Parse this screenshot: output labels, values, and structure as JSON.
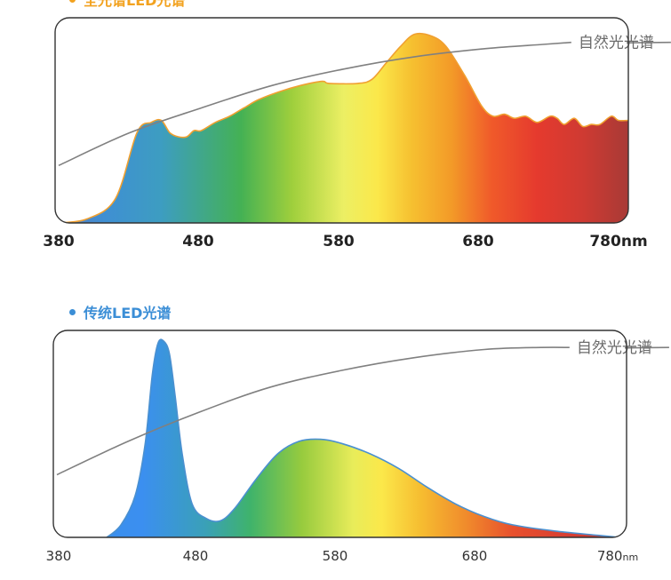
{
  "chart_data": [
    {
      "type": "area",
      "series_label": "全光谱LED光谱",
      "reference_label": "自然光光谱",
      "xlabel": "",
      "ylabel": "",
      "x_unit": "nm",
      "xlim": [
        380,
        780
      ],
      "ylim": [
        0,
        1
      ],
      "x_ticks": [
        380,
        480,
        580,
        680,
        780
      ],
      "series": [
        {
          "name": "全光谱LED光谱",
          "points": [
            [
              380,
              0.0
            ],
            [
              400,
              0.02
            ],
            [
              420,
              0.12
            ],
            [
              435,
              0.44
            ],
            [
              445,
              0.49
            ],
            [
              452,
              0.5
            ],
            [
              458,
              0.44
            ],
            [
              464,
              0.42
            ],
            [
              470,
              0.42
            ],
            [
              475,
              0.45
            ],
            [
              480,
              0.45
            ],
            [
              490,
              0.49
            ],
            [
              500,
              0.52
            ],
            [
              510,
              0.56
            ],
            [
              520,
              0.6
            ],
            [
              535,
              0.64
            ],
            [
              550,
              0.67
            ],
            [
              565,
              0.69
            ],
            [
              570,
              0.68
            ],
            [
              590,
              0.68
            ],
            [
              600,
              0.7
            ],
            [
              610,
              0.78
            ],
            [
              620,
              0.86
            ],
            [
              630,
              0.92
            ],
            [
              642,
              0.91
            ],
            [
              652,
              0.86
            ],
            [
              665,
              0.72
            ],
            [
              677,
              0.57
            ],
            [
              685,
              0.52
            ],
            [
              693,
              0.53
            ],
            [
              700,
              0.51
            ],
            [
              708,
              0.52
            ],
            [
              716,
              0.49
            ],
            [
              725,
              0.52
            ],
            [
              730,
              0.51
            ],
            [
              735,
              0.48
            ],
            [
              742,
              0.51
            ],
            [
              748,
              0.47
            ],
            [
              754,
              0.48
            ],
            [
              760,
              0.48
            ],
            [
              768,
              0.52
            ],
            [
              773,
              0.5
            ],
            [
              780,
              0.5
            ]
          ]
        },
        {
          "name": "自然光光谱",
          "points": [
            [
              380,
              0.28
            ],
            [
              430,
              0.44
            ],
            [
              480,
              0.56
            ],
            [
              530,
              0.67
            ],
            [
              580,
              0.75
            ],
            [
              630,
              0.81
            ],
            [
              680,
              0.85
            ],
            [
              720,
              0.87
            ],
            [
              740,
              0.88
            ]
          ]
        }
      ]
    },
    {
      "type": "area",
      "series_label": "传统LED光谱",
      "reference_label": "自然光光谱",
      "xlabel": "",
      "ylabel": "",
      "x_unit": "nm",
      "xlim": [
        380,
        780
      ],
      "ylim": [
        0,
        1
      ],
      "x_ticks": [
        380,
        480,
        580,
        680,
        780
      ],
      "series": [
        {
          "name": "传统LED光谱",
          "points": [
            [
              415,
              0.0
            ],
            [
              425,
              0.06
            ],
            [
              435,
              0.2
            ],
            [
              442,
              0.45
            ],
            [
              447,
              0.78
            ],
            [
              451,
              0.93
            ],
            [
              455,
              0.94
            ],
            [
              459,
              0.88
            ],
            [
              463,
              0.68
            ],
            [
              468,
              0.4
            ],
            [
              475,
              0.16
            ],
            [
              485,
              0.09
            ],
            [
              495,
              0.08
            ],
            [
              505,
              0.14
            ],
            [
              520,
              0.28
            ],
            [
              535,
              0.4
            ],
            [
              550,
              0.46
            ],
            [
              565,
              0.47
            ],
            [
              580,
              0.45
            ],
            [
              600,
              0.4
            ],
            [
              620,
              0.33
            ],
            [
              640,
              0.24
            ],
            [
              660,
              0.16
            ],
            [
              680,
              0.1
            ],
            [
              700,
              0.06
            ],
            [
              730,
              0.03
            ],
            [
              760,
              0.01
            ],
            [
              775,
              0.0
            ]
          ]
        },
        {
          "name": "自然光光谱",
          "points": [
            [
              380,
              0.3
            ],
            [
              430,
              0.46
            ],
            [
              480,
              0.6
            ],
            [
              530,
              0.72
            ],
            [
              580,
              0.8
            ],
            [
              630,
              0.86
            ],
            [
              680,
              0.9
            ],
            [
              720,
              0.91
            ],
            [
              740,
              0.91
            ]
          ]
        }
      ]
    }
  ],
  "colors": {
    "frame": "#333333",
    "reference_line": "#808080",
    "top_outline": "#f0a030",
    "bottom_outline": "#4a90d0",
    "legend_top": "#f2a21f",
    "legend_bottom": "#3b8ed6"
  }
}
